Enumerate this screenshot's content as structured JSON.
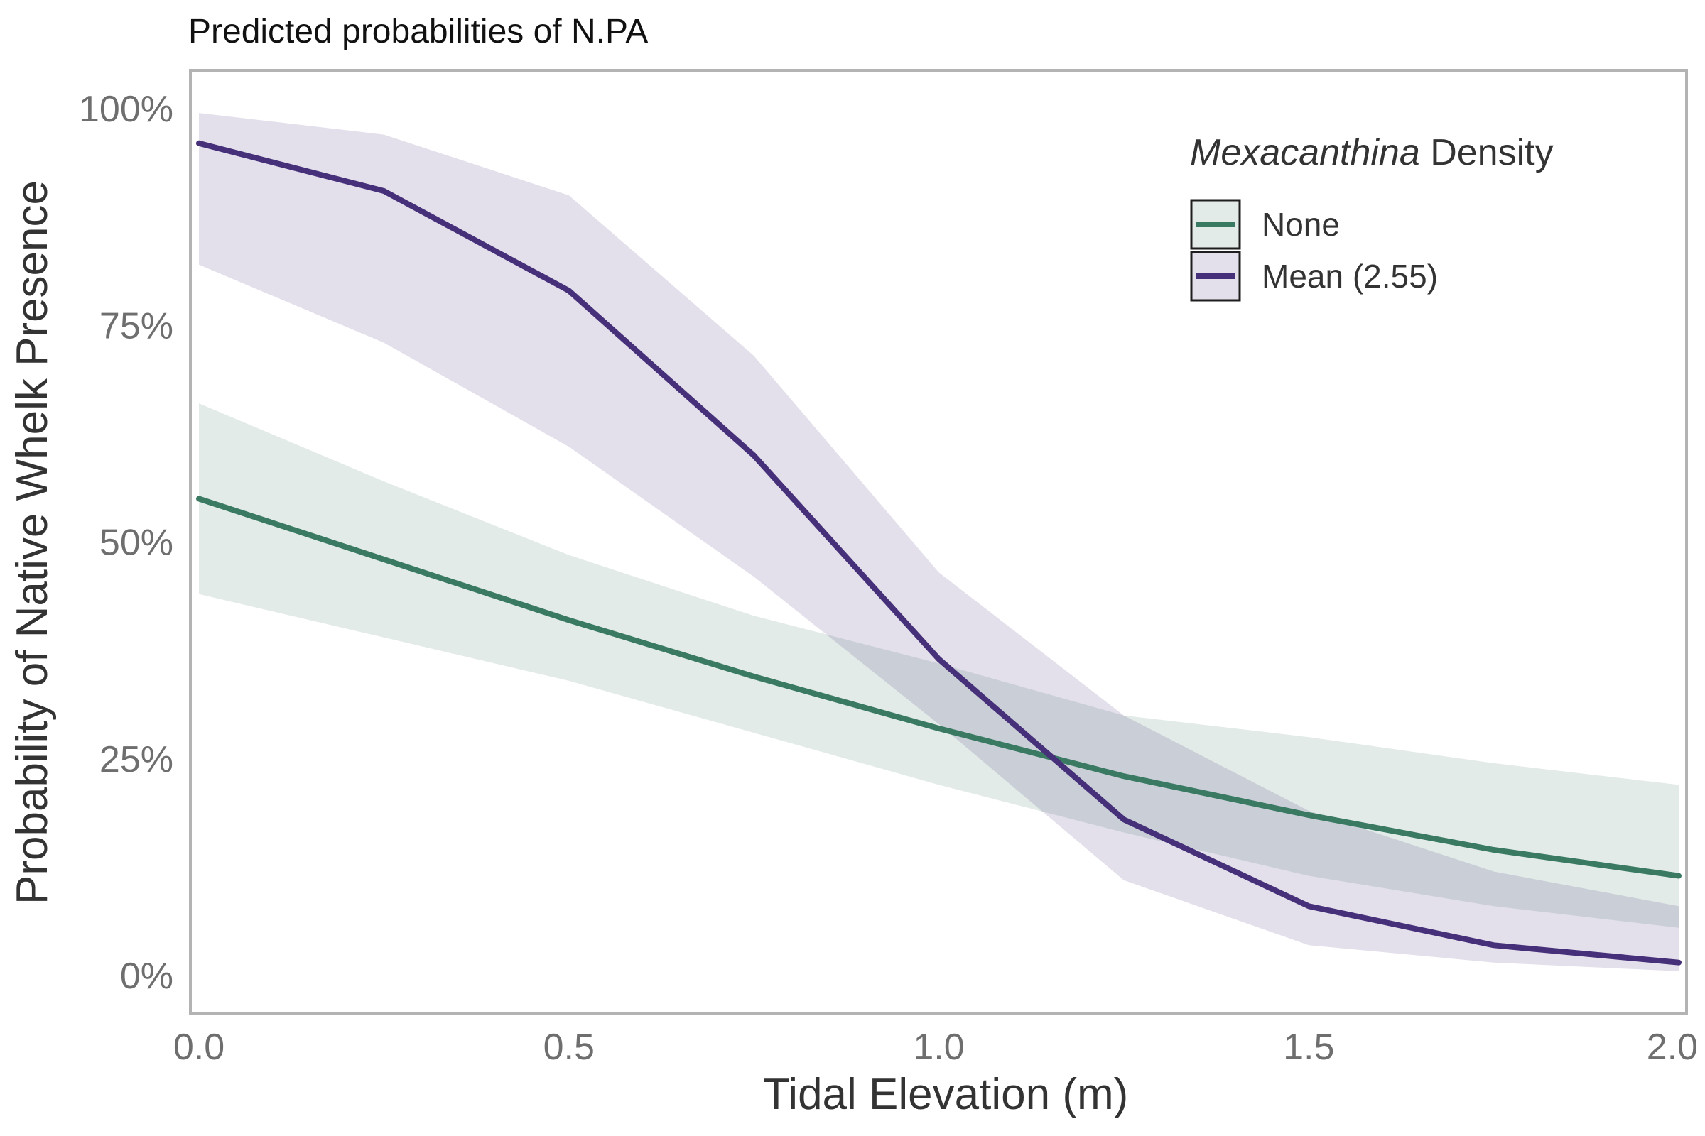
{
  "chart_data": {
    "type": "line",
    "title": "Predicted probabilities of N.PA",
    "xlabel": "Tidal Elevation (m)",
    "ylabel": "Probability of Native Whelk Presence",
    "xlim": [
      0,
      2
    ],
    "ylim": [
      0,
      1
    ],
    "x_ticks": [
      0,
      0.5,
      1.0,
      1.5,
      2.0
    ],
    "x_tick_labels": [
      "0.0",
      "0.5",
      "1.0",
      "1.5",
      "2.0"
    ],
    "y_ticks": [
      0,
      0.25,
      0.5,
      0.75,
      1.0
    ],
    "y_tick_labels": [
      "0%",
      "25%",
      "50%",
      "75%",
      "100%"
    ],
    "grid": false,
    "legend": {
      "title_italic": "Mexacanthina",
      "title_rest": " Density",
      "placement": "top-right"
    },
    "x": [
      0,
      0.25,
      0.5,
      0.75,
      1.0,
      1.25,
      1.5,
      1.75,
      2.0
    ],
    "series": [
      {
        "name": "None",
        "color": "#3a7a63",
        "values": [
          0.55,
          0.48,
          0.41,
          0.345,
          0.285,
          0.23,
          0.185,
          0.145,
          0.115
        ],
        "lower": [
          0.44,
          0.39,
          0.34,
          0.28,
          0.22,
          0.165,
          0.115,
          0.08,
          0.055
        ],
        "upper": [
          0.66,
          0.57,
          0.485,
          0.415,
          0.36,
          0.3,
          0.275,
          0.245,
          0.22
        ]
      },
      {
        "name": "Mean (2.55)",
        "color": "#46307a",
        "values": [
          0.96,
          0.905,
          0.79,
          0.6,
          0.365,
          0.18,
          0.08,
          0.035,
          0.015
        ],
        "lower": [
          0.82,
          0.73,
          0.61,
          0.46,
          0.29,
          0.11,
          0.035,
          0.015,
          0.005
        ],
        "upper": [
          0.995,
          0.97,
          0.9,
          0.715,
          0.465,
          0.3,
          0.19,
          0.12,
          0.08
        ]
      }
    ]
  }
}
